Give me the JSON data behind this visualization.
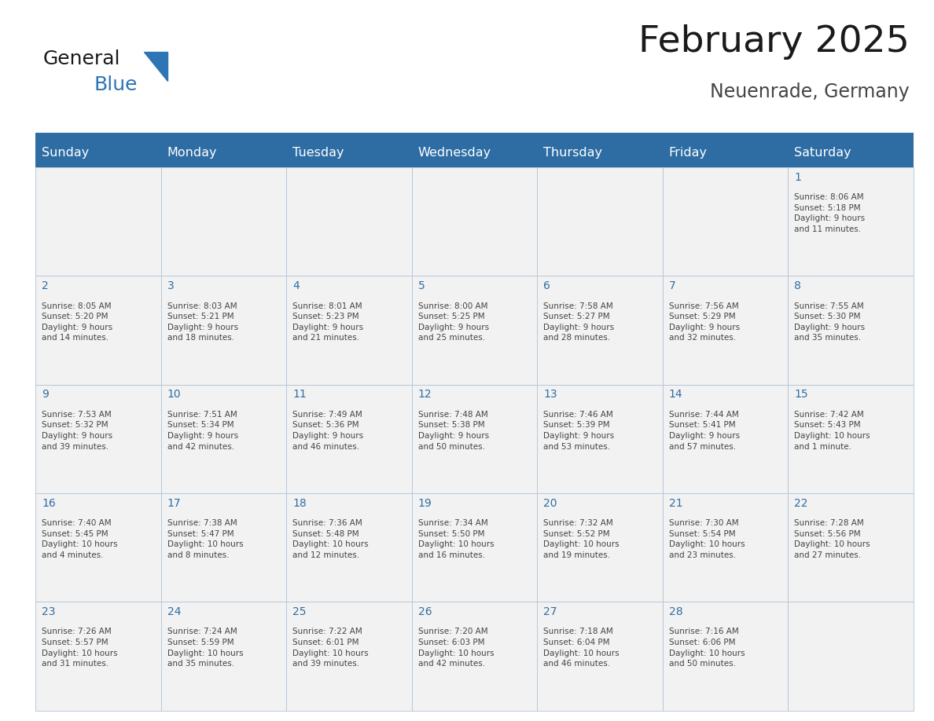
{
  "title": "February 2025",
  "subtitle": "Neuenrade, Germany",
  "days_of_week": [
    "Sunday",
    "Monday",
    "Tuesday",
    "Wednesday",
    "Thursday",
    "Friday",
    "Saturday"
  ],
  "header_bg": "#2E6DA4",
  "header_text": "#FFFFFF",
  "cell_bg_light": "#F2F2F2",
  "cell_bg_white": "#FFFFFF",
  "cell_border": "#B0C4D8",
  "day_num_color": "#2E6DA4",
  "text_color": "#444444",
  "logo_general_color": "#1a1a1a",
  "logo_blue_color": "#2E75B6",
  "title_color": "#1a1a1a",
  "subtitle_color": "#444444",
  "weeks": [
    [
      {
        "day": null,
        "info": null
      },
      {
        "day": null,
        "info": null
      },
      {
        "day": null,
        "info": null
      },
      {
        "day": null,
        "info": null
      },
      {
        "day": null,
        "info": null
      },
      {
        "day": null,
        "info": null
      },
      {
        "day": 1,
        "info": "Sunrise: 8:06 AM\nSunset: 5:18 PM\nDaylight: 9 hours\nand 11 minutes."
      }
    ],
    [
      {
        "day": 2,
        "info": "Sunrise: 8:05 AM\nSunset: 5:20 PM\nDaylight: 9 hours\nand 14 minutes."
      },
      {
        "day": 3,
        "info": "Sunrise: 8:03 AM\nSunset: 5:21 PM\nDaylight: 9 hours\nand 18 minutes."
      },
      {
        "day": 4,
        "info": "Sunrise: 8:01 AM\nSunset: 5:23 PM\nDaylight: 9 hours\nand 21 minutes."
      },
      {
        "day": 5,
        "info": "Sunrise: 8:00 AM\nSunset: 5:25 PM\nDaylight: 9 hours\nand 25 minutes."
      },
      {
        "day": 6,
        "info": "Sunrise: 7:58 AM\nSunset: 5:27 PM\nDaylight: 9 hours\nand 28 minutes."
      },
      {
        "day": 7,
        "info": "Sunrise: 7:56 AM\nSunset: 5:29 PM\nDaylight: 9 hours\nand 32 minutes."
      },
      {
        "day": 8,
        "info": "Sunrise: 7:55 AM\nSunset: 5:30 PM\nDaylight: 9 hours\nand 35 minutes."
      }
    ],
    [
      {
        "day": 9,
        "info": "Sunrise: 7:53 AM\nSunset: 5:32 PM\nDaylight: 9 hours\nand 39 minutes."
      },
      {
        "day": 10,
        "info": "Sunrise: 7:51 AM\nSunset: 5:34 PM\nDaylight: 9 hours\nand 42 minutes."
      },
      {
        "day": 11,
        "info": "Sunrise: 7:49 AM\nSunset: 5:36 PM\nDaylight: 9 hours\nand 46 minutes."
      },
      {
        "day": 12,
        "info": "Sunrise: 7:48 AM\nSunset: 5:38 PM\nDaylight: 9 hours\nand 50 minutes."
      },
      {
        "day": 13,
        "info": "Sunrise: 7:46 AM\nSunset: 5:39 PM\nDaylight: 9 hours\nand 53 minutes."
      },
      {
        "day": 14,
        "info": "Sunrise: 7:44 AM\nSunset: 5:41 PM\nDaylight: 9 hours\nand 57 minutes."
      },
      {
        "day": 15,
        "info": "Sunrise: 7:42 AM\nSunset: 5:43 PM\nDaylight: 10 hours\nand 1 minute."
      }
    ],
    [
      {
        "day": 16,
        "info": "Sunrise: 7:40 AM\nSunset: 5:45 PM\nDaylight: 10 hours\nand 4 minutes."
      },
      {
        "day": 17,
        "info": "Sunrise: 7:38 AM\nSunset: 5:47 PM\nDaylight: 10 hours\nand 8 minutes."
      },
      {
        "day": 18,
        "info": "Sunrise: 7:36 AM\nSunset: 5:48 PM\nDaylight: 10 hours\nand 12 minutes."
      },
      {
        "day": 19,
        "info": "Sunrise: 7:34 AM\nSunset: 5:50 PM\nDaylight: 10 hours\nand 16 minutes."
      },
      {
        "day": 20,
        "info": "Sunrise: 7:32 AM\nSunset: 5:52 PM\nDaylight: 10 hours\nand 19 minutes."
      },
      {
        "day": 21,
        "info": "Sunrise: 7:30 AM\nSunset: 5:54 PM\nDaylight: 10 hours\nand 23 minutes."
      },
      {
        "day": 22,
        "info": "Sunrise: 7:28 AM\nSunset: 5:56 PM\nDaylight: 10 hours\nand 27 minutes."
      }
    ],
    [
      {
        "day": 23,
        "info": "Sunrise: 7:26 AM\nSunset: 5:57 PM\nDaylight: 10 hours\nand 31 minutes."
      },
      {
        "day": 24,
        "info": "Sunrise: 7:24 AM\nSunset: 5:59 PM\nDaylight: 10 hours\nand 35 minutes."
      },
      {
        "day": 25,
        "info": "Sunrise: 7:22 AM\nSunset: 6:01 PM\nDaylight: 10 hours\nand 39 minutes."
      },
      {
        "day": 26,
        "info": "Sunrise: 7:20 AM\nSunset: 6:03 PM\nDaylight: 10 hours\nand 42 minutes."
      },
      {
        "day": 27,
        "info": "Sunrise: 7:18 AM\nSunset: 6:04 PM\nDaylight: 10 hours\nand 46 minutes."
      },
      {
        "day": 28,
        "info": "Sunrise: 7:16 AM\nSunset: 6:06 PM\nDaylight: 10 hours\nand 50 minutes."
      },
      {
        "day": null,
        "info": null
      }
    ]
  ],
  "fig_width": 11.88,
  "fig_height": 9.18,
  "cell_text_fontsize": 7.5,
  "day_num_fontsize": 10.0,
  "header_fontsize": 11.5,
  "title_fontsize": 34,
  "subtitle_fontsize": 17
}
